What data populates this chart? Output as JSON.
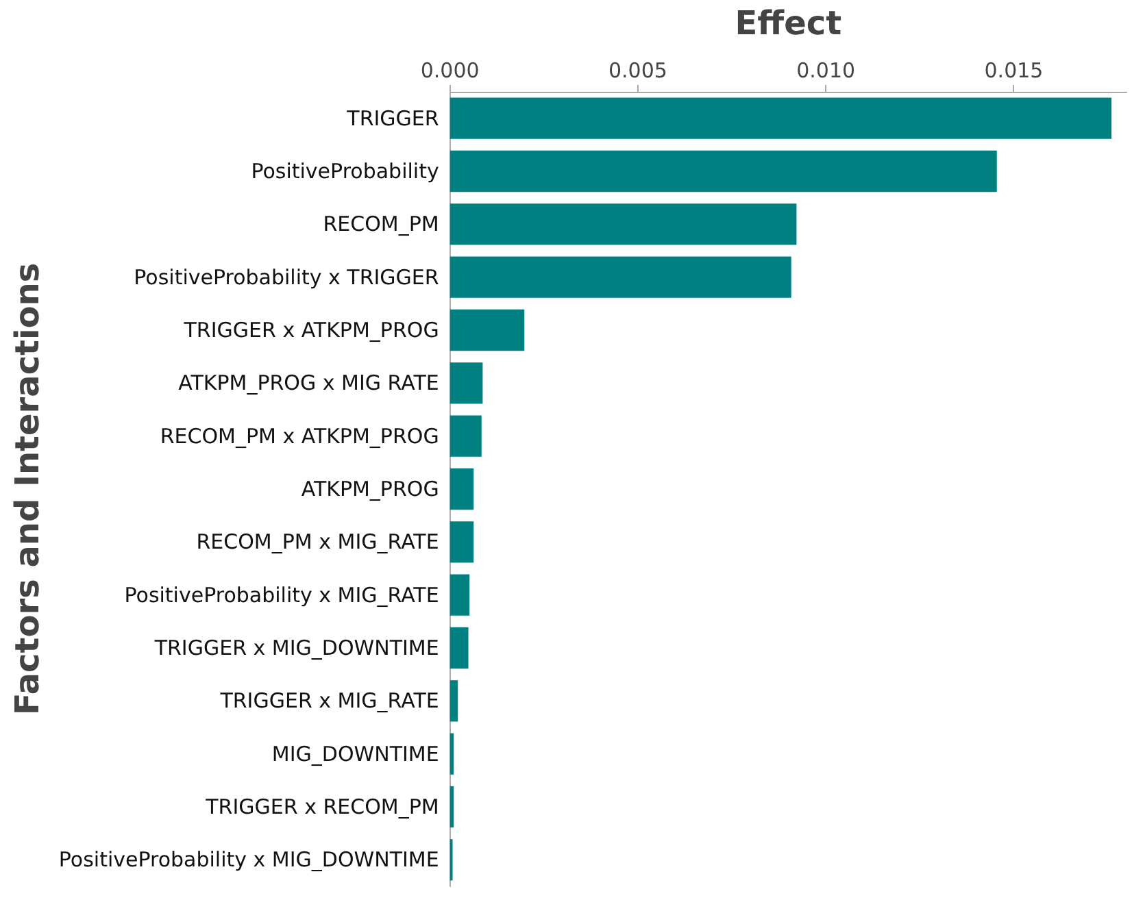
{
  "chart_data": {
    "type": "bar",
    "orientation": "horizontal",
    "xlabel": "Effect",
    "ylabel": "Factors and Interactions",
    "categories": [
      "TRIGGER",
      "PositiveProbability",
      "RECOM_PM",
      "PositiveProbability x TRIGGER",
      "TRIGGER x ATKPM_PROG",
      "ATKPM_PROG x MIG RATE",
      "RECOM_PM x ATKPM_PROG",
      "ATKPM_PROG",
      "RECOM_PM x MIG_RATE",
      "PositiveProbability x MIG_RATE",
      "TRIGGER x MIG_DOWNTIME",
      "TRIGGER x MIG_RATE",
      "MIG_DOWNTIME",
      "TRIGGER x RECOM_PM",
      "PositiveProbability x MIG_DOWNTIME"
    ],
    "values": [
      0.0176,
      0.01455,
      0.00922,
      0.00908,
      0.00198,
      0.00087,
      0.00084,
      0.00063,
      0.00063,
      0.00052,
      0.00049,
      0.00021,
      0.0001,
      0.0001,
      7e-05
    ],
    "color": "#008080",
    "xlim": [
      0,
      0.018
    ],
    "xticks": [
      {
        "value": 0,
        "label": "0.000"
      },
      {
        "value": 0.005,
        "label": "0.005"
      },
      {
        "value": 0.01,
        "label": "0.010"
      },
      {
        "value": 0.015,
        "label": "0.015"
      }
    ],
    "grid": false
  }
}
